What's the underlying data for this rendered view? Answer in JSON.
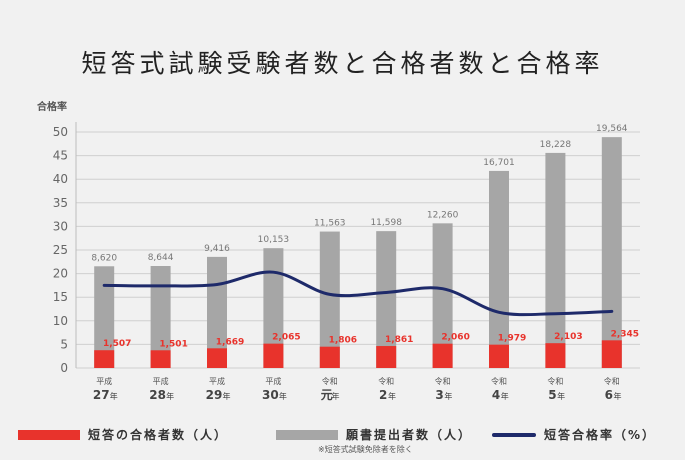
{
  "title": "短答式試験受験者数と合格者数と合格率",
  "colors": {
    "applicants": "#a6a6a6",
    "passers": "#e8332c",
    "rate": "#1e2a6a"
  },
  "chart_data": {
    "type": "bar",
    "title": "短答式試験受験者数と合格者数と合格率",
    "ylabel": "合格率",
    "ylim": [
      0,
      50
    ],
    "yticks": [
      0,
      5,
      10,
      15,
      20,
      25,
      30,
      35,
      40,
      45,
      50
    ],
    "grid": true,
    "legend_position": "bottom",
    "categories": [
      {
        "era": "平成",
        "num": "27",
        "unit": "年"
      },
      {
        "era": "平成",
        "num": "28",
        "unit": "年"
      },
      {
        "era": "平成",
        "num": "29",
        "unit": "年"
      },
      {
        "era": "平成",
        "num": "30",
        "unit": "年"
      },
      {
        "era": "令和",
        "num": "元",
        "unit": "年"
      },
      {
        "era": "令和",
        "num": "2",
        "unit": "年"
      },
      {
        "era": "令和",
        "num": "3",
        "unit": "年"
      },
      {
        "era": "令和",
        "num": "4",
        "unit": "年"
      },
      {
        "era": "令和",
        "num": "5",
        "unit": "年"
      },
      {
        "era": "令和",
        "num": "6",
        "unit": "年"
      }
    ],
    "series": [
      {
        "name": "願書提出者数（人）",
        "type": "bar",
        "values": [
          8620,
          8644,
          9416,
          10153,
          11563,
          11598,
          12260,
          16701,
          18228,
          19564
        ],
        "labels": [
          "8,620",
          "8,644",
          "9,416",
          "10,153",
          "11,563",
          "11,598",
          "12,260",
          "16,701",
          "18,228",
          "19,564"
        ]
      },
      {
        "name": "短答の合格者数（人）",
        "type": "bar",
        "values": [
          1507,
          1501,
          1669,
          2065,
          1806,
          1861,
          2060,
          1979,
          2103,
          2345
        ],
        "labels": [
          "1,507",
          "1,501",
          "1,669",
          "2,065",
          "1,806",
          "1,861",
          "2,060",
          "1,979",
          "2,103",
          "2,345"
        ]
      },
      {
        "name": "短答合格率（%）",
        "type": "line",
        "values": [
          17.5,
          17.4,
          17.7,
          20.3,
          15.6,
          16.0,
          16.8,
          11.8,
          11.5,
          12.0
        ]
      }
    ]
  },
  "legend": {
    "passers": "短答の合格者数（人）",
    "applicants": "願書提出者数（人）",
    "applicants_note": "※短答式試験免除者を除く",
    "rate": "短答合格率（%）"
  }
}
